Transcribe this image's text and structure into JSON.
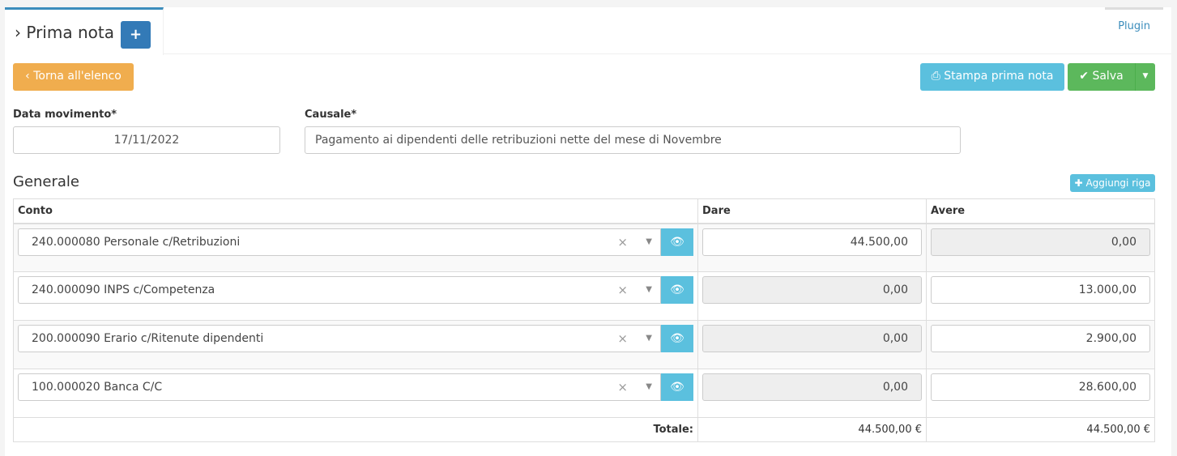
{
  "header": {
    "title": "Prima nota",
    "add_label": "+",
    "plugin_label": "Plugin"
  },
  "toolbar": {
    "back_label": "Torna all'elenco",
    "print_label": "Stampa prima nota",
    "save_label": "Salva"
  },
  "form": {
    "date_label": "Data movimento*",
    "date_value": "17/11/2022",
    "causale_label": "Causale*",
    "causale_value": "Pagamento ai dipendenti delle retribuzioni nette del mese di Novembre"
  },
  "section": {
    "title": "Generale",
    "add_row_label": "Aggiungi riga"
  },
  "table": {
    "headers": {
      "conto": "Conto",
      "dare": "Dare",
      "avere": "Avere"
    },
    "rows": [
      {
        "conto": "240.000080 Personale c/Retribuzioni",
        "dare": "44.500,00",
        "avere": "0,00"
      },
      {
        "conto": "240.000090 INPS c/Competenza",
        "dare": "0,00",
        "avere": "13.000,00"
      },
      {
        "conto": "200.000090 Erario c/Ritenute dipendenti",
        "dare": "0,00",
        "avere": "2.900,00"
      },
      {
        "conto": "100.000020 Banca C/C",
        "dare": "0,00",
        "avere": "28.600,00"
      }
    ],
    "totale_label": "Totale:",
    "totale_dare": "44.500,00 €",
    "totale_avere": "44.500,00 €"
  },
  "colors": {
    "primary": "#337ab7",
    "warning": "#f0ad4e",
    "info": "#5bc0de",
    "success": "#5cb85c",
    "tab_accent": "#3c8dbc"
  }
}
